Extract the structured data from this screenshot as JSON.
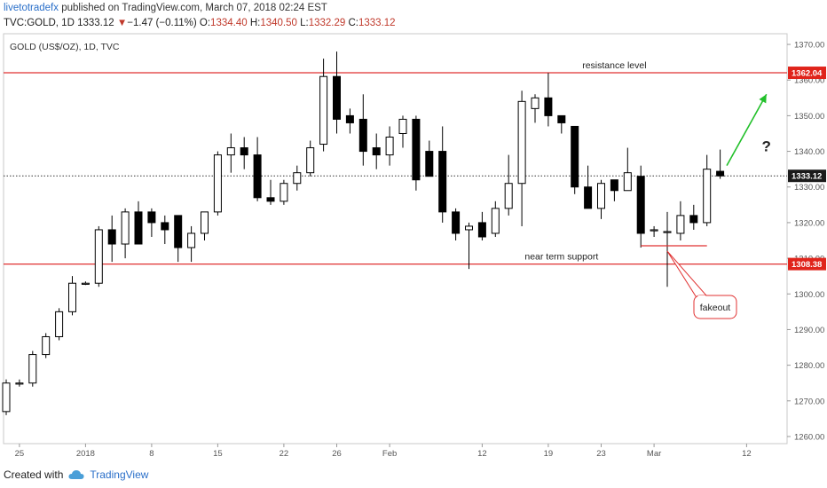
{
  "header": {
    "author": "livetotradefx",
    "published_text": "published on TradingView.com, March 07, 2018 02:24 EST"
  },
  "quote": {
    "symbol": "TVC:GOLD, 1D",
    "last": "1333.12",
    "arrow": "▼",
    "change": "−1.47 (−0.11%)",
    "o_label": "O:",
    "o": "1334.40",
    "h_label": "H:",
    "h": "1340.50",
    "l_label": "L:",
    "l": "1332.29",
    "c_label": "C:",
    "c": "1333.12"
  },
  "footer": {
    "created_with": "Created with",
    "brand": "TradingView"
  },
  "colors": {
    "level_line": "#e03030",
    "up_candle": "#ffffff",
    "down_candle": "#000000",
    "wick": "#000000",
    "arrow": "#22c02a",
    "last_price_badge": "#1b1b1b",
    "level_badge": "#e0241b",
    "callout_border": "#e03030"
  },
  "chart_data": {
    "type": "candlestick",
    "title": "GOLD (US$/OZ), 1D, TVC",
    "ylim": [
      1258,
      1373
    ],
    "yticks": [
      1260,
      1270,
      1280,
      1290,
      1300,
      1310,
      1320,
      1330,
      1340,
      1350,
      1360,
      1370
    ],
    "ytick_labels": [
      "1260.00",
      "1270.00",
      "1280.00",
      "1290.00",
      "1300.00",
      "1310.00",
      "1320.00",
      "1330.00",
      "1340.00",
      "1350.00",
      "1360.00",
      "1370.00"
    ],
    "xticks": [
      {
        "index": 1,
        "label": "25"
      },
      {
        "index": 6,
        "label": "2018"
      },
      {
        "index": 11,
        "label": "8"
      },
      {
        "index": 16,
        "label": "15"
      },
      {
        "index": 21,
        "label": "22"
      },
      {
        "index": 25,
        "label": "26"
      },
      {
        "index": 29,
        "label": "Feb"
      },
      {
        "index": 36,
        "label": "12"
      },
      {
        "index": 41,
        "label": "19"
      },
      {
        "index": 45,
        "label": "23"
      },
      {
        "index": 49,
        "label": "Mar"
      },
      {
        "index": 56,
        "label": "12"
      }
    ],
    "candles": [
      {
        "o": 1267,
        "h": 1276,
        "l": 1266,
        "c": 1275
      },
      {
        "o": 1275,
        "h": 1276,
        "l": 1274,
        "c": 1275
      },
      {
        "o": 1275,
        "h": 1284,
        "l": 1274,
        "c": 1283
      },
      {
        "o": 1283,
        "h": 1289,
        "l": 1282,
        "c": 1288
      },
      {
        "o": 1288,
        "h": 1296,
        "l": 1287,
        "c": 1295
      },
      {
        "o": 1295,
        "h": 1305,
        "l": 1294,
        "c": 1303
      },
      {
        "o": 1303,
        "h": 1303.5,
        "l": 1302.5,
        "c": 1303
      },
      {
        "o": 1303,
        "h": 1319,
        "l": 1302,
        "c": 1318
      },
      {
        "o": 1318,
        "h": 1322,
        "l": 1309,
        "c": 1314
      },
      {
        "o": 1314,
        "h": 1324,
        "l": 1310,
        "c": 1323
      },
      {
        "o": 1323,
        "h": 1326,
        "l": 1314,
        "c": 1314
      },
      {
        "o": 1323,
        "h": 1324,
        "l": 1316,
        "c": 1320
      },
      {
        "o": 1320,
        "h": 1322,
        "l": 1314,
        "c": 1318
      },
      {
        "o": 1322,
        "h": 1322,
        "l": 1309,
        "c": 1313
      },
      {
        "o": 1313,
        "h": 1319,
        "l": 1309,
        "c": 1317
      },
      {
        "o": 1317,
        "h": 1323,
        "l": 1315,
        "c": 1323
      },
      {
        "o": 1323,
        "h": 1340,
        "l": 1322,
        "c": 1339
      },
      {
        "o": 1339,
        "h": 1345,
        "l": 1334,
        "c": 1341
      },
      {
        "o": 1341,
        "h": 1344,
        "l": 1335,
        "c": 1339
      },
      {
        "o": 1339,
        "h": 1344,
        "l": 1326,
        "c": 1327
      },
      {
        "o": 1327,
        "h": 1332,
        "l": 1325,
        "c": 1326
      },
      {
        "o": 1326,
        "h": 1332,
        "l": 1325,
        "c": 1331
      },
      {
        "o": 1331,
        "h": 1336,
        "l": 1329,
        "c": 1334
      },
      {
        "o": 1334,
        "h": 1343,
        "l": 1333,
        "c": 1341
      },
      {
        "o": 1342,
        "h": 1366,
        "l": 1340,
        "c": 1361
      },
      {
        "o": 1361,
        "h": 1368,
        "l": 1345,
        "c": 1349
      },
      {
        "o": 1350,
        "h": 1352,
        "l": 1345,
        "c": 1348
      },
      {
        "o": 1349,
        "h": 1356,
        "l": 1336,
        "c": 1340
      },
      {
        "o": 1341,
        "h": 1345,
        "l": 1335,
        "c": 1339
      },
      {
        "o": 1339,
        "h": 1347,
        "l": 1336,
        "c": 1344
      },
      {
        "o": 1345,
        "h": 1350,
        "l": 1341,
        "c": 1349
      },
      {
        "o": 1349,
        "h": 1350,
        "l": 1329,
        "c": 1332
      },
      {
        "o": 1340,
        "h": 1343,
        "l": 1333,
        "c": 1333
      },
      {
        "o": 1340,
        "h": 1347,
        "l": 1320,
        "c": 1323
      },
      {
        "o": 1323,
        "h": 1324,
        "l": 1315,
        "c": 1317
      },
      {
        "o": 1318,
        "h": 1320,
        "l": 1307,
        "c": 1319
      },
      {
        "o": 1320,
        "h": 1323,
        "l": 1315,
        "c": 1316
      },
      {
        "o": 1317,
        "h": 1326,
        "l": 1316,
        "c": 1324
      },
      {
        "o": 1324,
        "h": 1339,
        "l": 1322,
        "c": 1331
      },
      {
        "o": 1331,
        "h": 1357,
        "l": 1319,
        "c": 1354
      },
      {
        "o": 1352,
        "h": 1356,
        "l": 1348,
        "c": 1355
      },
      {
        "o": 1355,
        "h": 1362,
        "l": 1347,
        "c": 1350
      },
      {
        "o": 1350,
        "h": 1350,
        "l": 1345,
        "c": 1348
      },
      {
        "o": 1347,
        "h": 1347,
        "l": 1328,
        "c": 1330
      },
      {
        "o": 1330,
        "h": 1336,
        "l": 1324,
        "c": 1324
      },
      {
        "o": 1324,
        "h": 1332,
        "l": 1321,
        "c": 1331
      },
      {
        "o": 1332,
        "h": 1332,
        "l": 1326,
        "c": 1329
      },
      {
        "o": 1329,
        "h": 1341,
        "l": 1329,
        "c": 1334
      },
      {
        "o": 1333,
        "h": 1336,
        "l": 1313,
        "c": 1317
      },
      {
        "o": 1318,
        "h": 1319,
        "l": 1316,
        "c": 1318
      },
      {
        "o": 1317.5,
        "h": 1323,
        "l": 1302,
        "c": 1317.5
      },
      {
        "o": 1317,
        "h": 1326,
        "l": 1315,
        "c": 1322
      },
      {
        "o": 1322,
        "h": 1325,
        "l": 1318,
        "c": 1320
      },
      {
        "o": 1320,
        "h": 1339,
        "l": 1319,
        "c": 1335
      },
      {
        "o": 1334.4,
        "h": 1340.5,
        "l": 1332.29,
        "c": 1333.12
      }
    ],
    "levels": [
      {
        "name": "resistance level",
        "value": 1362.04,
        "label": "1362.04"
      },
      {
        "name": "near term support",
        "value": 1308.38,
        "label": "1308.38"
      }
    ],
    "last_price": {
      "value": 1333.12,
      "label": "1333.12"
    },
    "annotations": {
      "resistance": "resistance level",
      "support": "near term support",
      "fakeout": "fakeout",
      "question": "?"
    },
    "fakeout_marker_line": {
      "value": 1313.5,
      "from_index": 48,
      "to_index": 53
    },
    "fakeout_pointer_value": 1312,
    "fakeout_pointer_index": 50,
    "arrow_target": {
      "from_index": 54.5,
      "from_value": 1336,
      "to_index": 57.5,
      "to_value": 1356
    }
  }
}
